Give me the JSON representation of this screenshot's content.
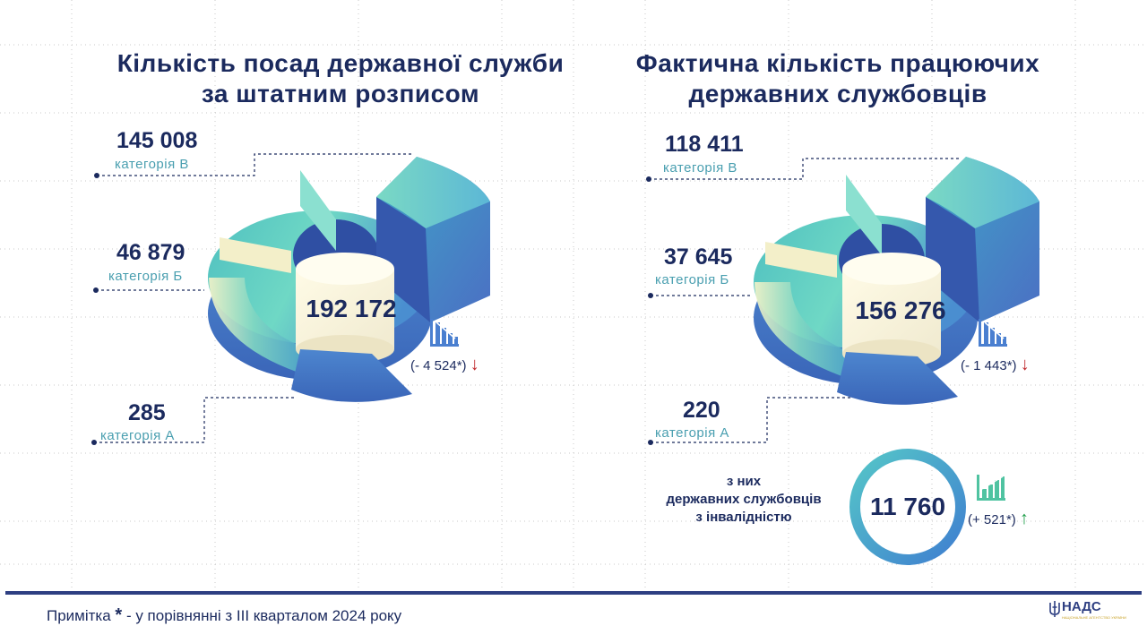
{
  "colors": {
    "navy": "#1b2a5e",
    "teal_label": "#4a9fb0",
    "arrow_down": "#c0282d",
    "arrow_up": "#1f9e4a",
    "footer_line": "#2e3f82"
  },
  "left": {
    "title_line1": "Кількість посад державної служби",
    "title_line2": "за штатним розписом",
    "total": "192 172",
    "delta": "(- 4 524*)",
    "delta_arrow": "↓",
    "cat_v_value": "145 008",
    "cat_v_label": "категорія В",
    "cat_b_value": "46 879",
    "cat_b_label": "категорія Б",
    "cat_a_value": "285",
    "cat_a_label": "категорія А"
  },
  "right": {
    "title_line1": "Фактична кількість працюючих",
    "title_line2": "державних службовців",
    "total": "156 276",
    "delta": "(- 1 443*)",
    "delta_arrow": "↓",
    "cat_v_value": "118 411",
    "cat_v_label": "категорія В",
    "cat_b_value": "37 645",
    "cat_b_label": "категорія Б",
    "cat_a_value": "220",
    "cat_a_label": "категорія А"
  },
  "disability": {
    "line1": "з них",
    "line2": "державних службовців",
    "line3": "з інвалідністю",
    "value": "11 760",
    "delta": "(+ 521*)",
    "delta_arrow": "↑"
  },
  "footer": {
    "note_prefix": "Примітка",
    "star": "*",
    "note_suffix": "- у порівнянні з ІІІ кварталом 2024 року",
    "logo_text": "НАДС",
    "logo_sub": "НАЦІОНАЛЬНЕ АГЕНТСТВО УКРАЇНИ"
  },
  "chart_data": [
    {
      "type": "pie",
      "title": "Кількість посад державної служби за штатним розписом",
      "total": 192172,
      "categories": [
        "категорія В",
        "категорія Б",
        "категорія А"
      ],
      "values": [
        145008,
        46879,
        285
      ],
      "change": -4524
    },
    {
      "type": "pie",
      "title": "Фактична кількість працюючих державних службовців",
      "total": 156276,
      "categories": [
        "категорія В",
        "категорія Б",
        "категорія А"
      ],
      "values": [
        118411,
        37645,
        220
      ],
      "change": -1443
    }
  ]
}
